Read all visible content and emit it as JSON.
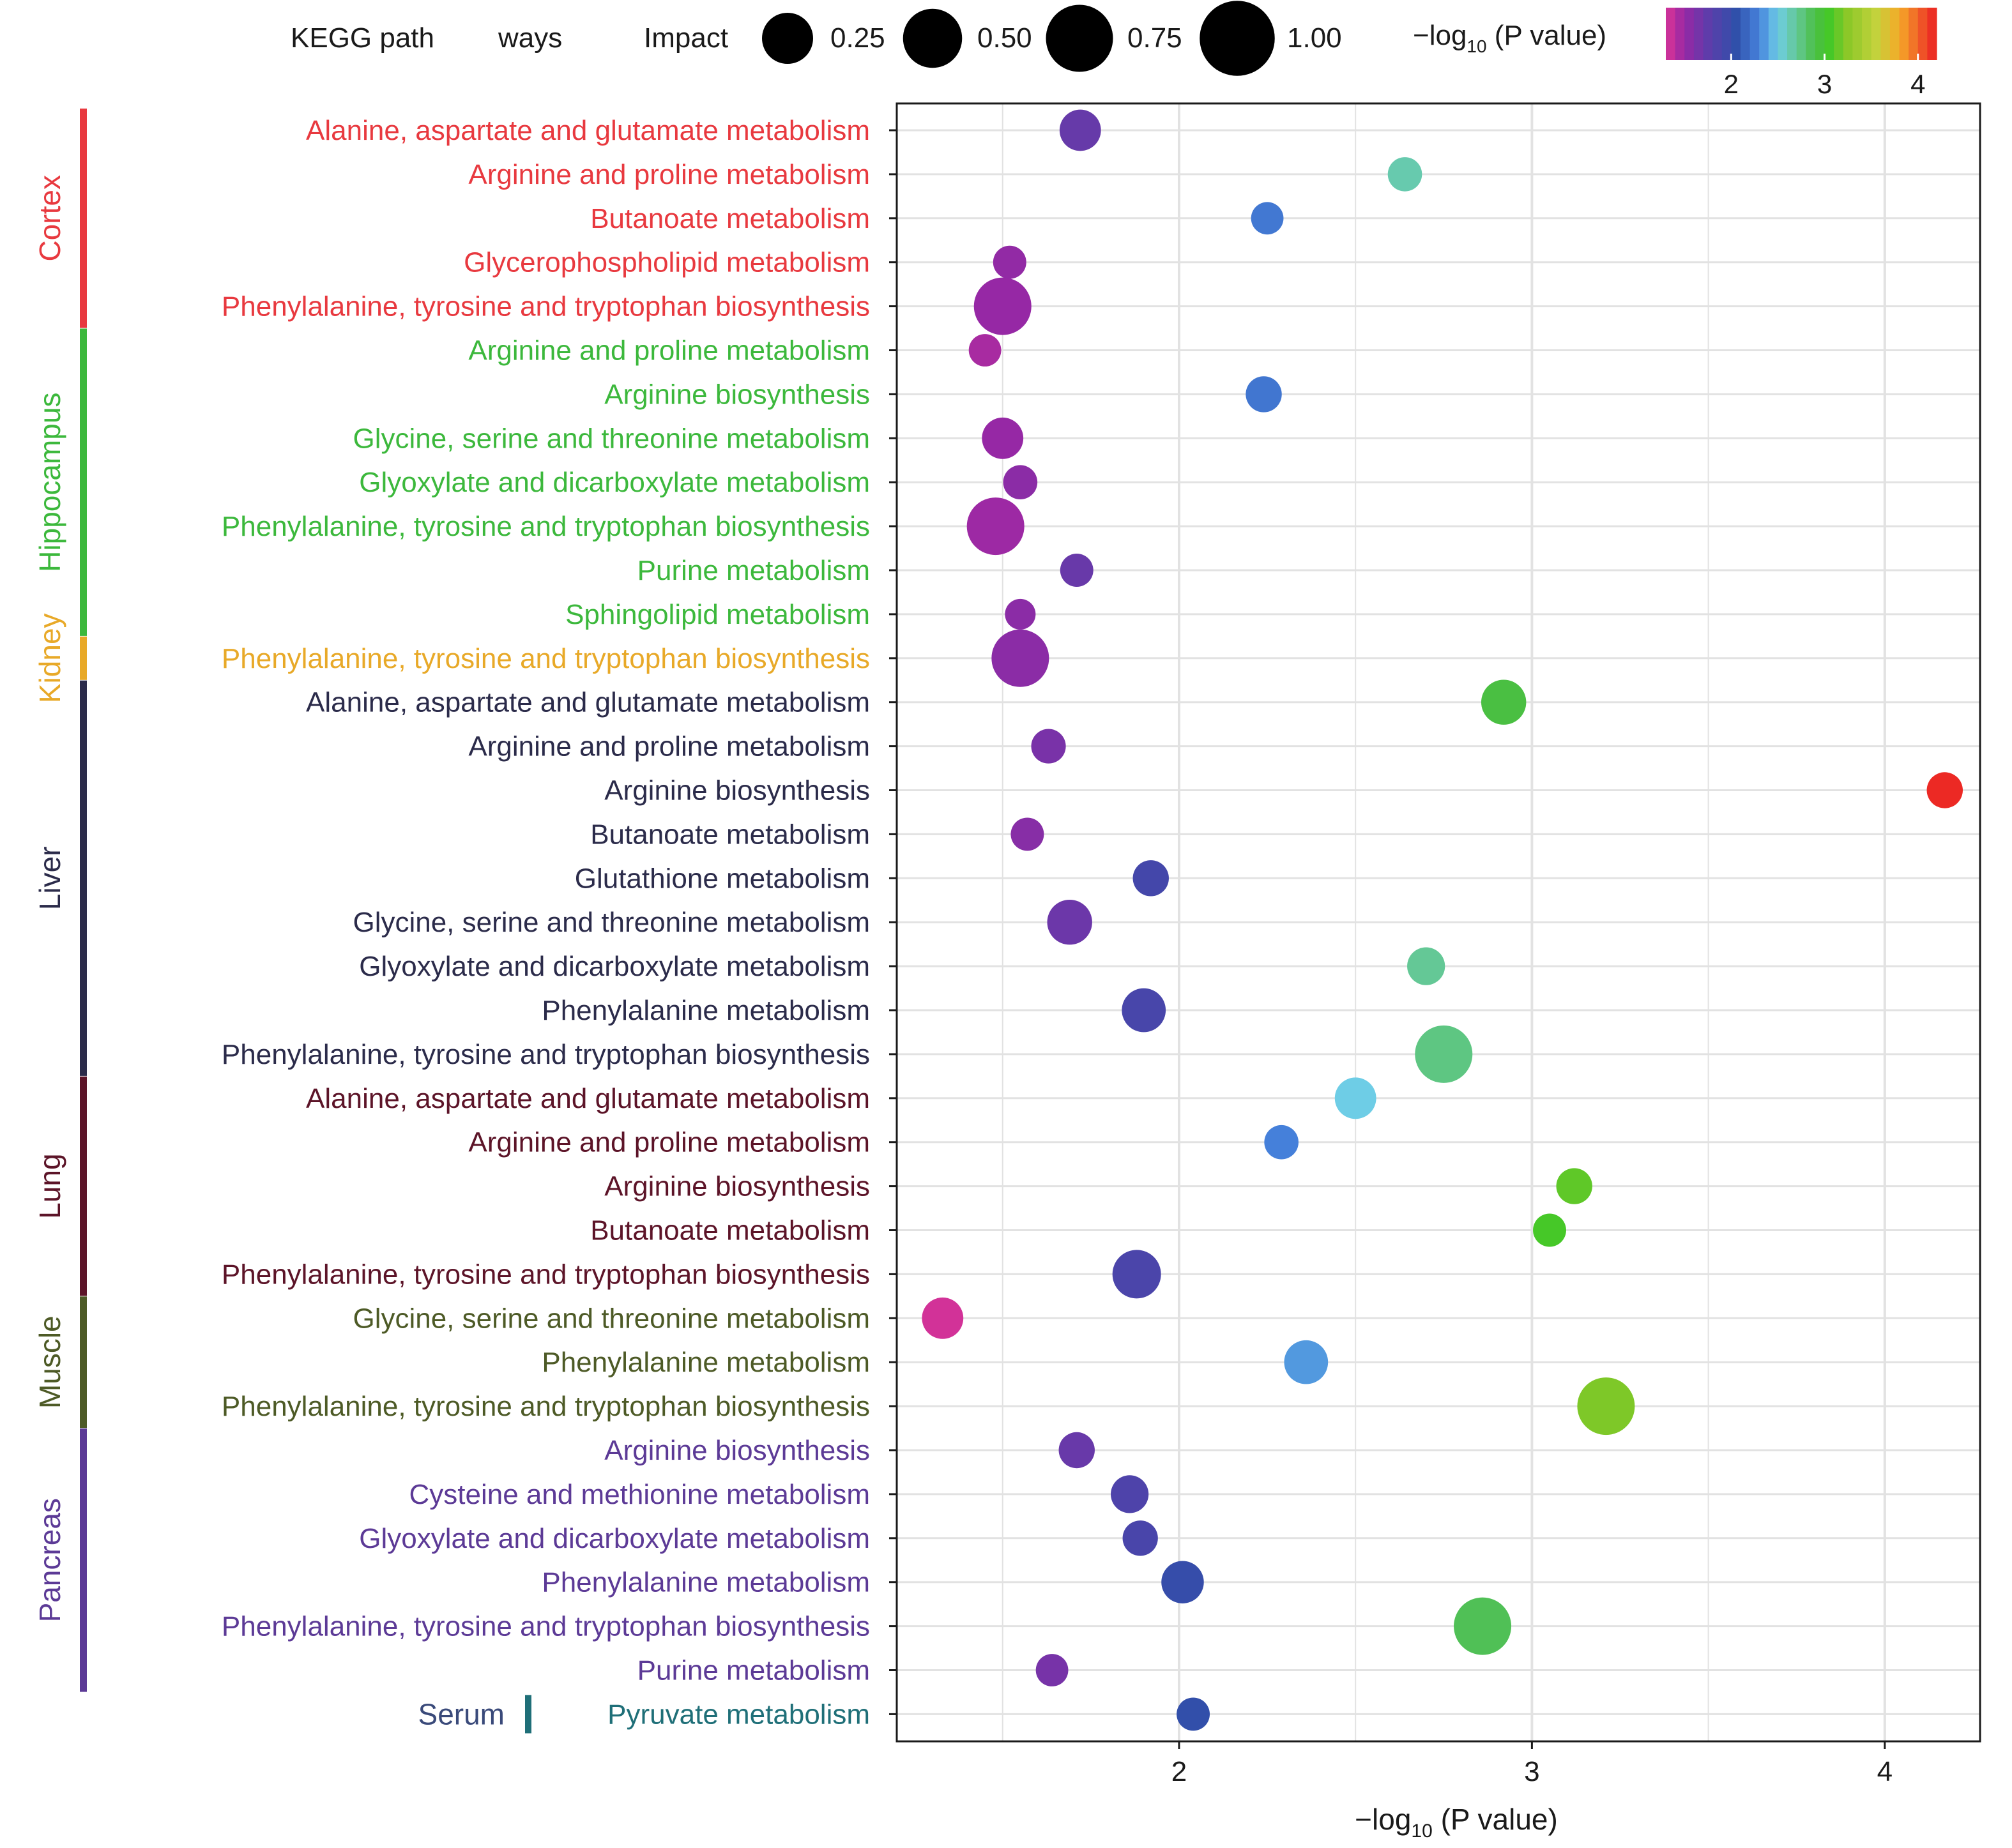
{
  "chart_data": {
    "type": "scatter",
    "title": "",
    "legend": {
      "title_part1": "KEGG path",
      "title_part2": "ways",
      "size_title": "Impact",
      "size_values": [
        0.25,
        0.5,
        0.75,
        1.0
      ],
      "size_labels": [
        "0.25",
        "0.50",
        "0.75",
        "1.00"
      ],
      "color_title": "−log",
      "color_title_sub": "10",
      "color_title_rest": " (P value)",
      "color_range": [
        1.3,
        4.2
      ],
      "color_ticks": [
        2,
        3,
        4
      ],
      "color_tick_labels": [
        "2",
        "3",
        "4"
      ],
      "placement": "top"
    },
    "xlabel": "−log",
    "xlabel_sub": "10",
    "xlabel_rest": " (P value)",
    "xlim": [
      1.2,
      4.27
    ],
    "xticks": [
      2,
      3,
      4
    ],
    "xtick_labels": [
      "2",
      "3",
      "4"
    ],
    "grid": true,
    "groups": [
      {
        "name": "Cortex",
        "color": "#e8393f",
        "start": 0,
        "end": 4
      },
      {
        "name": "Hippocampus",
        "color": "#3cb83c",
        "start": 5,
        "end": 11
      },
      {
        "name": "Kidney",
        "color": "#e8a928",
        "start": 12,
        "end": 12
      },
      {
        "name": "Liver",
        "color": "#2b2b4a",
        "start": 13,
        "end": 21
      },
      {
        "name": "Lung",
        "color": "#5c1428",
        "start": 22,
        "end": 26
      },
      {
        "name": "Muscle",
        "color": "#4d5a26",
        "start": 27,
        "end": 29
      },
      {
        "name": "Pancreas",
        "color": "#5c3a96",
        "start": 30,
        "end": 35
      },
      {
        "name": "Serum",
        "color": "#1f6f78",
        "start": 36,
        "end": 36
      }
    ],
    "points": [
      {
        "label": "Alanine, aspartate and glutamate metabolism",
        "x": 1.72,
        "impact": 0.55,
        "group": "Cortex"
      },
      {
        "label": "Arginine and proline metabolism",
        "x": 2.64,
        "impact": 0.35,
        "group": "Cortex"
      },
      {
        "label": "Butanoate metabolism",
        "x": 2.25,
        "impact": 0.3,
        "group": "Cortex"
      },
      {
        "label": "Glycerophospholipid metabolism",
        "x": 1.52,
        "impact": 0.32,
        "group": "Cortex"
      },
      {
        "label": "Phenylalanine, tyrosine and tryptophan biosynthesis",
        "x": 1.5,
        "impact": 1.0,
        "group": "Cortex"
      },
      {
        "label": "Arginine and proline metabolism",
        "x": 1.45,
        "impact": 0.3,
        "group": "Hippocampus"
      },
      {
        "label": "Arginine biosynthesis",
        "x": 2.24,
        "impact": 0.4,
        "group": "Hippocampus"
      },
      {
        "label": "Glycine, serine and threonine metabolism",
        "x": 1.5,
        "impact": 0.55,
        "group": "Hippocampus"
      },
      {
        "label": "Glyoxylate and dicarboxylate metabolism",
        "x": 1.55,
        "impact": 0.35,
        "group": "Hippocampus"
      },
      {
        "label": "Phenylalanine, tyrosine and tryptophan biosynthesis",
        "x": 1.48,
        "impact": 1.0,
        "group": "Hippocampus"
      },
      {
        "label": "Purine metabolism",
        "x": 1.71,
        "impact": 0.32,
        "group": "Hippocampus"
      },
      {
        "label": "Sphingolipid metabolism",
        "x": 1.55,
        "impact": 0.25,
        "group": "Hippocampus"
      },
      {
        "label": "Phenylalanine, tyrosine and tryptophan biosynthesis",
        "x": 1.55,
        "impact": 1.0,
        "group": "Kidney"
      },
      {
        "label": "Alanine, aspartate and glutamate metabolism",
        "x": 2.92,
        "impact": 0.65,
        "group": "Liver"
      },
      {
        "label": "Arginine and proline metabolism",
        "x": 1.63,
        "impact": 0.36,
        "group": "Liver"
      },
      {
        "label": "Arginine biosynthesis",
        "x": 4.17,
        "impact": 0.4,
        "group": "Liver"
      },
      {
        "label": "Butanoate metabolism",
        "x": 1.57,
        "impact": 0.32,
        "group": "Liver"
      },
      {
        "label": "Glutathione metabolism",
        "x": 1.92,
        "impact": 0.4,
        "group": "Liver"
      },
      {
        "label": "Glycine, serine and threonine metabolism",
        "x": 1.69,
        "impact": 0.65,
        "group": "Liver"
      },
      {
        "label": "Glyoxylate and dicarboxylate metabolism",
        "x": 2.7,
        "impact": 0.45,
        "group": "Liver"
      },
      {
        "label": "Phenylalanine metabolism",
        "x": 1.9,
        "impact": 0.62,
        "group": "Liver"
      },
      {
        "label": "Phenylalanine, tyrosine and tryptophan biosynthesis",
        "x": 2.75,
        "impact": 1.0,
        "group": "Liver"
      },
      {
        "label": "Alanine, aspartate and glutamate metabolism",
        "x": 2.5,
        "impact": 0.55,
        "group": "Lung"
      },
      {
        "label": "Arginine and proline metabolism",
        "x": 2.29,
        "impact": 0.35,
        "group": "Lung"
      },
      {
        "label": "Arginine biosynthesis",
        "x": 3.12,
        "impact": 0.4,
        "group": "Lung"
      },
      {
        "label": "Butanoate metabolism",
        "x": 3.05,
        "impact": 0.32,
        "group": "Lung"
      },
      {
        "label": "Phenylalanine, tyrosine and tryptophan biosynthesis",
        "x": 1.88,
        "impact": 0.75,
        "group": "Lung"
      },
      {
        "label": "Glycine, serine and threonine metabolism",
        "x": 1.33,
        "impact": 0.55,
        "group": "Muscle"
      },
      {
        "label": "Phenylalanine metabolism",
        "x": 2.36,
        "impact": 0.62,
        "group": "Muscle"
      },
      {
        "label": "Phenylalanine, tyrosine and tryptophan biosynthesis",
        "x": 3.21,
        "impact": 1.0,
        "group": "Muscle"
      },
      {
        "label": "Arginine biosynthesis",
        "x": 1.71,
        "impact": 0.4,
        "group": "Pancreas"
      },
      {
        "label": "Cysteine and methionine metabolism",
        "x": 1.86,
        "impact": 0.45,
        "group": "Pancreas"
      },
      {
        "label": "Glyoxylate and dicarboxylate metabolism",
        "x": 1.89,
        "impact": 0.38,
        "group": "Pancreas"
      },
      {
        "label": "Phenylalanine metabolism",
        "x": 2.01,
        "impact": 0.58,
        "group": "Pancreas"
      },
      {
        "label": "Phenylalanine, tyrosine and tryptophan biosynthesis",
        "x": 2.86,
        "impact": 1.0,
        "group": "Pancreas"
      },
      {
        "label": "Purine metabolism",
        "x": 1.64,
        "impact": 0.3,
        "group": "Pancreas"
      },
      {
        "label": "Pyruvate metabolism",
        "x": 2.04,
        "impact": 0.32,
        "group": "Serum"
      }
    ]
  }
}
